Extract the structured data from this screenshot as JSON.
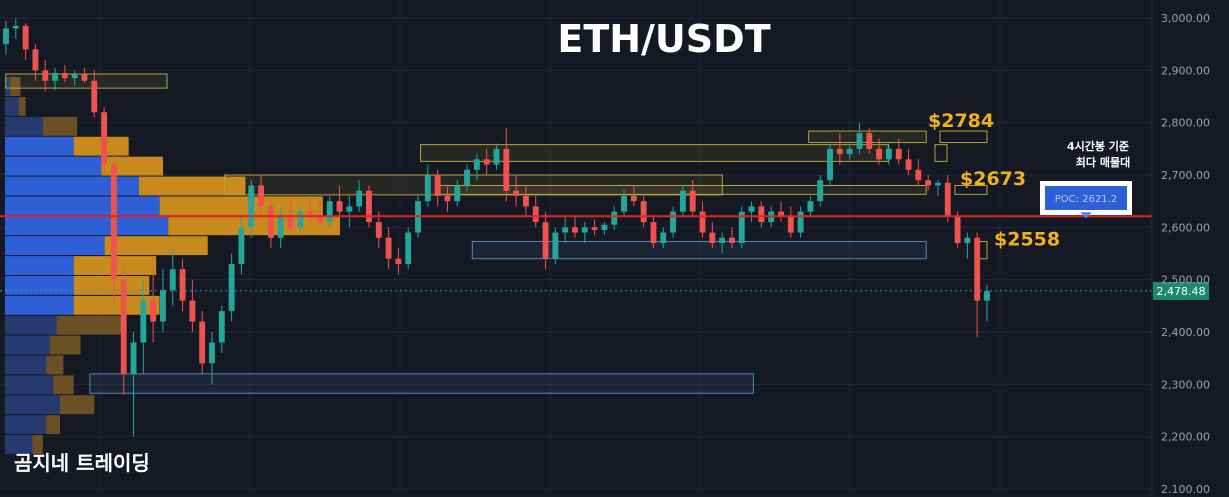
{
  "title": "ETH/USDT",
  "watermark": "곰지네 트레이딩",
  "chart_data": {
    "type": "candlestick",
    "title": "ETH/USDT",
    "y_axis": {
      "position": "right",
      "ylim": [
        2100,
        3000
      ],
      "ticks": [
        3000,
        2900,
        2800,
        2700,
        2600,
        2500,
        2400,
        2300,
        2200,
        2100
      ],
      "tick_labels": [
        "3,000.00",
        "2,900.00",
        "2,800.00",
        "2,700.00",
        "2,600.00",
        "2,500.00",
        "2,400.00",
        "2,300.00",
        "2,200.00",
        "2,100.00"
      ]
    },
    "grid": true,
    "current_price": 2478.48,
    "current_price_label": "2,478.48",
    "poc": {
      "price": 2621.2,
      "label": "POC: 2621.2",
      "note_line1": "4시간봉 기준",
      "note_line2": "최다 매물대"
    },
    "price_annotations": [
      {
        "label": "$2784",
        "price": 2784
      },
      {
        "label": "$2673",
        "price": 2673
      },
      {
        "label": "$2558",
        "price": 2558
      }
    ],
    "zones": [
      {
        "type": "supply",
        "top": 2893,
        "bottom": 2866,
        "x_from": 0.005,
        "x_to": 0.145
      },
      {
        "type": "supply",
        "top": 2784,
        "bottom": 2762,
        "x_from": 0.702,
        "x_to": 0.804
      },
      {
        "type": "supply",
        "top": 2758,
        "bottom": 2726,
        "x_from": 0.365,
        "x_to": 0.771
      },
      {
        "type": "supply",
        "top": 2700,
        "bottom": 2662,
        "x_from": 0.195,
        "x_to": 0.627
      },
      {
        "type": "supply",
        "top": 2680,
        "bottom": 2663,
        "x_from": 0.382,
        "x_to": 0.804
      },
      {
        "type": "demand",
        "top": 2573,
        "bottom": 2540,
        "x_from": 0.41,
        "x_to": 0.804
      },
      {
        "type": "demand",
        "top": 2320,
        "bottom": 2283,
        "x_from": 0.078,
        "x_to": 0.654
      }
    ],
    "volume_profile": {
      "rows": [
        {
          "low": 2850,
          "high": 2888,
          "up": 3,
          "down": 6
        },
        {
          "low": 2812,
          "high": 2850,
          "up": 8,
          "down": 4
        },
        {
          "low": 2774,
          "high": 2812,
          "up": 22,
          "down": 20
        },
        {
          "low": 2736,
          "high": 2774,
          "up": 40,
          "down": 32
        },
        {
          "low": 2698,
          "high": 2736,
          "up": 56,
          "down": 36
        },
        {
          "low": 2660,
          "high": 2698,
          "up": 78,
          "down": 62
        },
        {
          "low": 2622,
          "high": 2660,
          "up": 90,
          "down": 95
        },
        {
          "low": 2584,
          "high": 2622,
          "up": 95,
          "down": 100
        },
        {
          "low": 2546,
          "high": 2584,
          "up": 58,
          "down": 60
        },
        {
          "low": 2508,
          "high": 2546,
          "up": 40,
          "down": 48
        },
        {
          "low": 2470,
          "high": 2508,
          "up": 40,
          "down": 44
        },
        {
          "low": 2432,
          "high": 2470,
          "up": 40,
          "down": 50
        },
        {
          "low": 2394,
          "high": 2432,
          "up": 30,
          "down": 40
        },
        {
          "low": 2356,
          "high": 2394,
          "up": 26,
          "down": 18
        },
        {
          "low": 2318,
          "high": 2356,
          "up": 24,
          "down": 10
        },
        {
          "low": 2280,
          "high": 2318,
          "up": 28,
          "down": 12
        },
        {
          "low": 2242,
          "high": 2280,
          "up": 32,
          "down": 20
        },
        {
          "low": 2204,
          "high": 2242,
          "up": 24,
          "down": 8
        },
        {
          "low": 2166,
          "high": 2204,
          "up": 16,
          "down": 6
        }
      ]
    },
    "candles": [
      [
        2950,
        2995,
        2930,
        2980
      ],
      [
        2980,
        3000,
        2960,
        2985
      ],
      [
        2985,
        2990,
        2920,
        2940
      ],
      [
        2940,
        2950,
        2880,
        2900
      ],
      [
        2900,
        2920,
        2860,
        2880
      ],
      [
        2880,
        2905,
        2862,
        2895
      ],
      [
        2895,
        2910,
        2878,
        2885
      ],
      [
        2885,
        2900,
        2870,
        2892
      ],
      [
        2892,
        2905,
        2876,
        2880
      ],
      [
        2880,
        2900,
        2810,
        2820
      ],
      [
        2820,
        2830,
        2700,
        2720
      ],
      [
        2720,
        2740,
        2450,
        2500
      ],
      [
        2500,
        2520,
        2280,
        2320
      ],
      [
        2320,
        2400,
        2200,
        2380
      ],
      [
        2380,
        2500,
        2320,
        2460
      ],
      [
        2460,
        2520,
        2380,
        2420
      ],
      [
        2420,
        2520,
        2400,
        2480
      ],
      [
        2480,
        2560,
        2450,
        2520
      ],
      [
        2520,
        2540,
        2440,
        2460
      ],
      [
        2460,
        2500,
        2400,
        2420
      ],
      [
        2420,
        2440,
        2320,
        2340
      ],
      [
        2340,
        2400,
        2300,
        2380
      ],
      [
        2380,
        2450,
        2360,
        2440
      ],
      [
        2440,
        2550,
        2420,
        2530
      ],
      [
        2530,
        2620,
        2510,
        2600
      ],
      [
        2600,
        2690,
        2580,
        2680
      ],
      [
        2680,
        2700,
        2620,
        2640
      ],
      [
        2640,
        2660,
        2560,
        2580
      ],
      [
        2580,
        2640,
        2560,
        2620
      ],
      [
        2620,
        2650,
        2590,
        2600
      ],
      [
        2600,
        2640,
        2590,
        2630
      ],
      [
        2630,
        2660,
        2610,
        2620
      ],
      [
        2620,
        2650,
        2600,
        2610
      ],
      [
        2610,
        2660,
        2600,
        2650
      ],
      [
        2650,
        2680,
        2620,
        2630
      ],
      [
        2630,
        2660,
        2600,
        2640
      ],
      [
        2640,
        2690,
        2630,
        2670
      ],
      [
        2670,
        2680,
        2600,
        2610
      ],
      [
        2610,
        2630,
        2560,
        2580
      ],
      [
        2580,
        2600,
        2520,
        2540
      ],
      [
        2540,
        2560,
        2510,
        2530
      ],
      [
        2530,
        2600,
        2520,
        2590
      ],
      [
        2590,
        2660,
        2580,
        2650
      ],
      [
        2650,
        2720,
        2640,
        2700
      ],
      [
        2700,
        2710,
        2640,
        2660
      ],
      [
        2660,
        2680,
        2630,
        2650
      ],
      [
        2650,
        2690,
        2640,
        2680
      ],
      [
        2680,
        2720,
        2670,
        2710
      ],
      [
        2710,
        2740,
        2690,
        2730
      ],
      [
        2730,
        2750,
        2700,
        2720
      ],
      [
        2720,
        2760,
        2710,
        2750
      ],
      [
        2750,
        2790,
        2650,
        2670
      ],
      [
        2670,
        2700,
        2640,
        2660
      ],
      [
        2660,
        2680,
        2620,
        2640
      ],
      [
        2640,
        2660,
        2600,
        2610
      ],
      [
        2610,
        2630,
        2520,
        2540
      ],
      [
        2540,
        2600,
        2530,
        2590
      ],
      [
        2590,
        2620,
        2570,
        2600
      ],
      [
        2600,
        2620,
        2580,
        2590
      ],
      [
        2590,
        2610,
        2570,
        2600
      ],
      [
        2600,
        2615,
        2585,
        2595
      ],
      [
        2595,
        2610,
        2585,
        2605
      ],
      [
        2605,
        2640,
        2595,
        2630
      ],
      [
        2630,
        2670,
        2620,
        2660
      ],
      [
        2660,
        2680,
        2640,
        2650
      ],
      [
        2650,
        2660,
        2600,
        2610
      ],
      [
        2610,
        2620,
        2560,
        2570
      ],
      [
        2570,
        2600,
        2560,
        2590
      ],
      [
        2590,
        2640,
        2580,
        2630
      ],
      [
        2630,
        2680,
        2620,
        2670
      ],
      [
        2670,
        2690,
        2620,
        2630
      ],
      [
        2630,
        2650,
        2580,
        2590
      ],
      [
        2590,
        2610,
        2560,
        2570
      ],
      [
        2570,
        2590,
        2550,
        2580
      ],
      [
        2580,
        2600,
        2560,
        2570
      ],
      [
        2570,
        2640,
        2560,
        2630
      ],
      [
        2630,
        2650,
        2610,
        2640
      ],
      [
        2640,
        2650,
        2600,
        2610
      ],
      [
        2610,
        2640,
        2600,
        2630
      ],
      [
        2630,
        2650,
        2610,
        2620
      ],
      [
        2620,
        2640,
        2580,
        2590
      ],
      [
        2590,
        2640,
        2580,
        2630
      ],
      [
        2630,
        2660,
        2620,
        2650
      ],
      [
        2650,
        2700,
        2640,
        2690
      ],
      [
        2690,
        2760,
        2680,
        2750
      ],
      [
        2750,
        2780,
        2720,
        2740
      ],
      [
        2740,
        2760,
        2730,
        2750
      ],
      [
        2750,
        2800,
        2740,
        2780
      ],
      [
        2780,
        2790,
        2740,
        2750
      ],
      [
        2750,
        2770,
        2720,
        2730
      ],
      [
        2730,
        2760,
        2720,
        2750
      ],
      [
        2750,
        2770,
        2720,
        2730
      ],
      [
        2730,
        2750,
        2700,
        2710
      ],
      [
        2710,
        2730,
        2680,
        2690
      ],
      [
        2690,
        2700,
        2670,
        2680
      ],
      [
        2680,
        2690,
        2660,
        2685
      ],
      [
        2685,
        2700,
        2610,
        2620
      ],
      [
        2620,
        2630,
        2560,
        2570
      ],
      [
        2570,
        2590,
        2540,
        2580
      ],
      [
        2580,
        2590,
        2390,
        2460
      ],
      [
        2460,
        2490,
        2420,
        2478
      ]
    ]
  }
}
